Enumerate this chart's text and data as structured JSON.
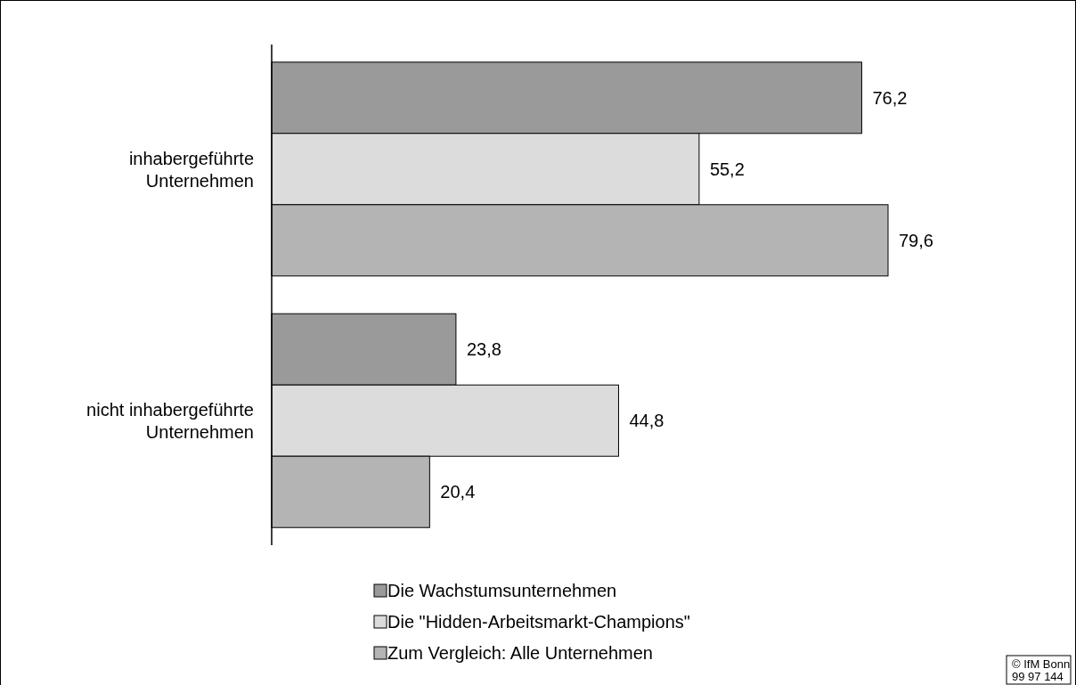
{
  "chart_data": {
    "type": "bar",
    "orientation": "horizontal",
    "categories": [
      "inhabergeführte Unternehmen",
      "nicht inhabergeführte Unternehmen"
    ],
    "series": [
      {
        "name": "Die Wachstumsunternehmen",
        "color": "#9a9a9a",
        "values": [
          76.2,
          23.8
        ],
        "value_labels": [
          "76,2",
          "23,8"
        ]
      },
      {
        "name": "Die \"Hidden-Arbeitsmarkt-Champions\"",
        "color": "#dcdcdc",
        "values": [
          55.2,
          44.8
        ],
        "value_labels": [
          "55,2",
          "44,8"
        ]
      },
      {
        "name": "Zum Vergleich: Alle Unternehmen",
        "color": "#b4b4b4",
        "values": [
          79.6,
          20.4
        ],
        "value_labels": [
          "79,6",
          "20,4"
        ]
      }
    ],
    "tick_labels": "y",
    "legend": "bottom",
    "annotations": [
      "© IfM Bonn\n99 97 144"
    ]
  }
}
